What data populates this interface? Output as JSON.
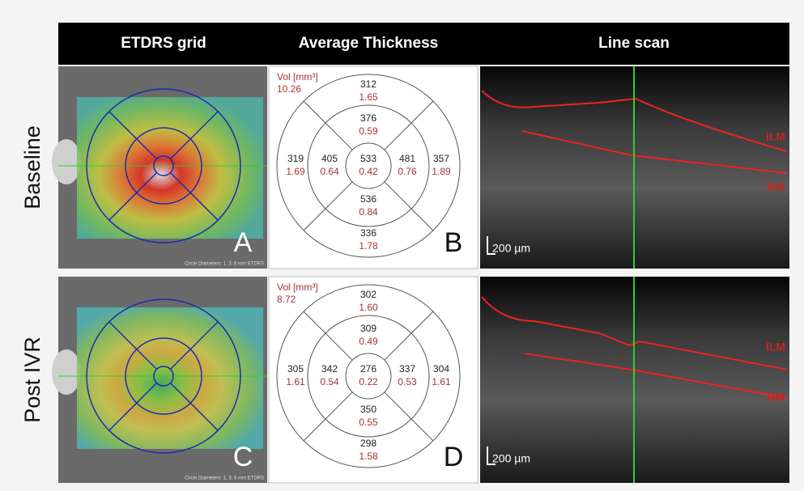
{
  "header": {
    "columns": [
      "ETDRS grid",
      "Average Thickness",
      "Line scan"
    ]
  },
  "rows": [
    {
      "label": "Baseline",
      "fundus_letter": "A",
      "fundus_note": "Circle Diameters: 1, 3, 6 mm ETDRS",
      "thickness_letter": "B",
      "volume_label": "Vol [mm³]",
      "volume": "10.26",
      "sectors": {
        "outer_top": {
          "thickness": "312",
          "volume": "1.65"
        },
        "inner_top": {
          "thickness": "376",
          "volume": "0.59"
        },
        "outer_left": {
          "thickness": "319",
          "volume": "1.69"
        },
        "inner_left": {
          "thickness": "405",
          "volume": "0.64"
        },
        "center": {
          "thickness": "533",
          "volume": "0.42"
        },
        "inner_right": {
          "thickness": "481",
          "volume": "0.76"
        },
        "outer_right": {
          "thickness": "357",
          "volume": "1.89"
        },
        "inner_bottom": {
          "thickness": "536",
          "volume": "0.84"
        },
        "outer_bottom": {
          "thickness": "336",
          "volume": "1.78"
        }
      },
      "scale_bar": "200 µm",
      "layer_labels": [
        "ILM",
        "BM"
      ]
    },
    {
      "label": "Post IVR",
      "fundus_letter": "C",
      "fundus_note": "Circle Diameters: 1, 3, 6 mm ETDRS",
      "thickness_letter": "D",
      "volume_label": "Vol [mm³]",
      "volume": "8.72",
      "sectors": {
        "outer_top": {
          "thickness": "302",
          "volume": "1.60"
        },
        "inner_top": {
          "thickness": "309",
          "volume": "0.49"
        },
        "outer_left": {
          "thickness": "305",
          "volume": "1.61"
        },
        "inner_left": {
          "thickness": "342",
          "volume": "0.54"
        },
        "center": {
          "thickness": "276",
          "volume": "0.22"
        },
        "inner_right": {
          "thickness": "337",
          "volume": "0.53"
        },
        "outer_right": {
          "thickness": "304",
          "volume": "1.61"
        },
        "inner_bottom": {
          "thickness": "350",
          "volume": "0.55"
        },
        "outer_bottom": {
          "thickness": "298",
          "volume": "1.58"
        }
      },
      "scale_bar": "200 µm",
      "layer_labels": [
        "ILM",
        "BM"
      ]
    }
  ]
}
